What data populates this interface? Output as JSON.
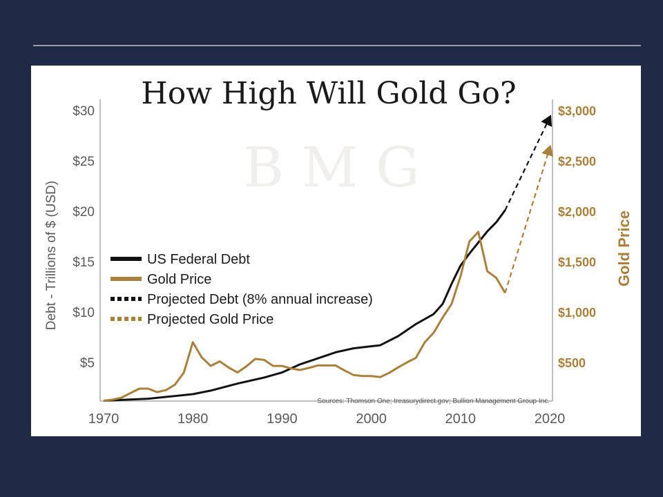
{
  "chart_data": {
    "type": "line",
    "title": "How High Will Gold Go?",
    "xlabel": "",
    "ylabel": "Debt - Trillions of $ (USD)",
    "y2label": "Gold Price",
    "xlim": [
      1970,
      2020
    ],
    "ylim": [
      0,
      30
    ],
    "y2lim": [
      0,
      3000
    ],
    "x_ticks": [
      "1970",
      "1980",
      "1990",
      "2000",
      "2010",
      "2020"
    ],
    "y_ticks": [
      "$5",
      "$10",
      "$15",
      "$20",
      "$25",
      "$30"
    ],
    "y2_ticks": [
      "$500",
      "$1,000",
      "$1,500",
      "$2,000",
      "$2,500",
      "$3,000"
    ],
    "legend_position": "center-left",
    "legend": [
      "US Federal Debt",
      "Gold Price",
      "Projected Debt (8% annual increase)",
      "Projected Gold Price"
    ],
    "source": "Sources: Thomson One; treasurydirect.gov; Bullion Management Group Inc.",
    "watermark": "B M G",
    "series": [
      {
        "name": "US Federal Debt",
        "axis": "left",
        "color": "#111111",
        "dashed": false,
        "x": [
          1970,
          1975,
          1980,
          1982,
          1985,
          1988,
          1990,
          1992,
          1994,
          1996,
          1998,
          2000,
          2001,
          2003,
          2005,
          2007,
          2008,
          2009,
          2010,
          2011,
          2012,
          2013,
          2014,
          2015
        ],
        "y": [
          1.2,
          1.4,
          1.85,
          2.2,
          2.9,
          3.5,
          4.0,
          4.8,
          5.4,
          6.0,
          6.4,
          6.6,
          6.7,
          7.6,
          8.8,
          9.8,
          10.8,
          12.8,
          14.6,
          15.8,
          16.9,
          18.0,
          18.9,
          20.1
        ]
      },
      {
        "name": "Gold Price",
        "axis": "right",
        "color": "#a97f3a",
        "dashed": false,
        "x": [
          1970,
          1971,
          1972,
          1973,
          1974,
          1975,
          1976,
          1977,
          1978,
          1979,
          1980,
          1981,
          1982,
          1983,
          1984,
          1985,
          1986,
          1987,
          1988,
          1989,
          1990,
          1991,
          1992,
          1993,
          1994,
          1995,
          1996,
          1997,
          1998,
          1999,
          2000,
          2001,
          2002,
          2003,
          2004,
          2005,
          2006,
          2007,
          2008,
          2009,
          2010,
          2011,
          2012,
          2013,
          2014,
          2015
        ],
        "y": [
          120,
          130,
          150,
          195,
          240,
          240,
          205,
          225,
          280,
          400,
          700,
          550,
          465,
          510,
          450,
          400,
          460,
          535,
          525,
          465,
          465,
          440,
          425,
          445,
          470,
          470,
          470,
          420,
          375,
          365,
          365,
          355,
          395,
          450,
          500,
          545,
          700,
          795,
          945,
          1080,
          1355,
          1700,
          1795,
          1405,
          1340,
          1190
        ]
      },
      {
        "name": "Projected Debt (8% annual increase)",
        "axis": "left",
        "color": "#111111",
        "dashed": true,
        "x": [
          2015,
          2020
        ],
        "y": [
          20.1,
          29.3
        ]
      },
      {
        "name": "Projected Gold Price",
        "axis": "right",
        "color": "#a97f3a",
        "dashed": true,
        "x": [
          2015,
          2020
        ],
        "y": [
          1190,
          2630
        ]
      }
    ]
  }
}
